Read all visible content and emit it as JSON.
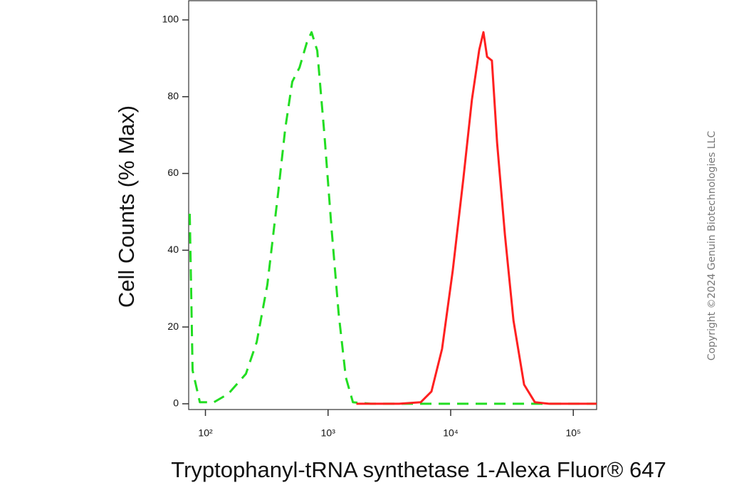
{
  "chart_data": {
    "type": "line",
    "xlabel": "Tryptophanyl-tRNA synthetase 1-Alexa Fluor® 647",
    "ylabel": "Cell Counts (% Max)",
    "annotation": "Copyright ©2024 Genuin Biotechnologies LLC",
    "xscale": "log",
    "xlim": [
      73,
      155000
    ],
    "ylim": [
      -1.5,
      105
    ],
    "xticks": [
      {
        "value": 100,
        "label": "10²"
      },
      {
        "value": 1000,
        "label": "10³"
      },
      {
        "value": 10000,
        "label": "10⁴"
      },
      {
        "value": 100000,
        "label": "10⁵"
      }
    ],
    "yticks": [
      0,
      20,
      40,
      60,
      80,
      100
    ],
    "series": [
      {
        "color": "#22dd22",
        "linestyle": "dashed",
        "x": [
          74.5,
          78.6,
          90,
          117,
          154,
          214,
          262,
          320,
          392,
          448,
          511,
          585,
          670,
          734,
          817,
          935,
          1067,
          1220,
          1395,
          1595,
          2230,
          24800,
          155000
        ],
        "values": [
          49.5,
          8.7,
          0.4,
          0.4,
          2.6,
          7.8,
          16.1,
          31,
          55,
          71.8,
          83.9,
          87.6,
          94,
          96.8,
          92,
          70,
          45.8,
          23.6,
          6.9,
          0.4,
          0,
          0,
          0
        ]
      },
      {
        "color": "#ff2020",
        "linestyle": "solid",
        "x": [
          1700,
          3800,
          5700,
          6970,
          8510,
          10400,
          12700,
          14900,
          17100,
          18500,
          19800,
          21700,
          23900,
          27700,
          32500,
          39700,
          48600,
          63400,
          155000
        ],
        "values": [
          0,
          0,
          0.4,
          3.2,
          14.3,
          34.7,
          58.8,
          79.2,
          92.2,
          96.8,
          90.4,
          89.4,
          68,
          44,
          21.7,
          5,
          0.4,
          0,
          0
        ]
      }
    ]
  }
}
